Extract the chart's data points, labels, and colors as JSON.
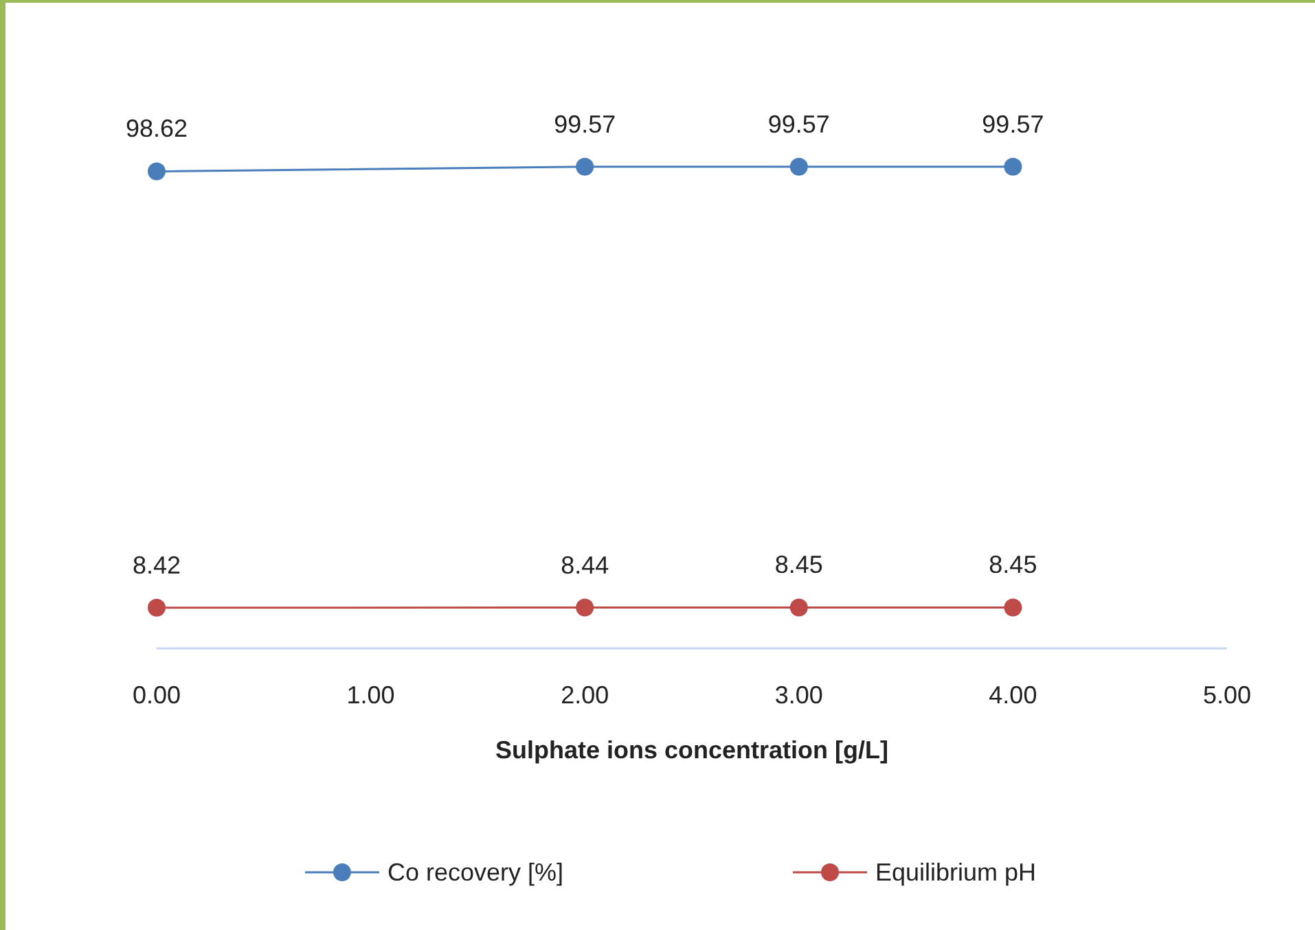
{
  "chart_data": {
    "type": "line",
    "xlabel": "Sulphate ions concentration [g/L]",
    "x": [
      0,
      2,
      3,
      4
    ],
    "series": [
      {
        "name": "Co recovery [%]",
        "color": "#4a7ebb",
        "values": [
          98.62,
          99.57,
          99.57,
          99.57
        ]
      },
      {
        "name": "Equilibrium pH",
        "color": "#be4b48",
        "values": [
          8.42,
          8.44,
          8.45,
          8.45
        ]
      }
    ],
    "xlim": [
      0,
      5
    ],
    "xticks": [
      {
        "value": 0,
        "label": "0.00"
      },
      {
        "value": 1,
        "label": "1.00"
      },
      {
        "value": 2,
        "label": "2.00"
      },
      {
        "value": 3,
        "label": "3.00"
      },
      {
        "value": 4,
        "label": "4.00"
      },
      {
        "value": 5,
        "label": "5.00"
      }
    ],
    "tick_labels": "x",
    "data_labels": true,
    "legend": "bottom",
    "marker": "circle",
    "line_style": "solid",
    "grid": false
  }
}
